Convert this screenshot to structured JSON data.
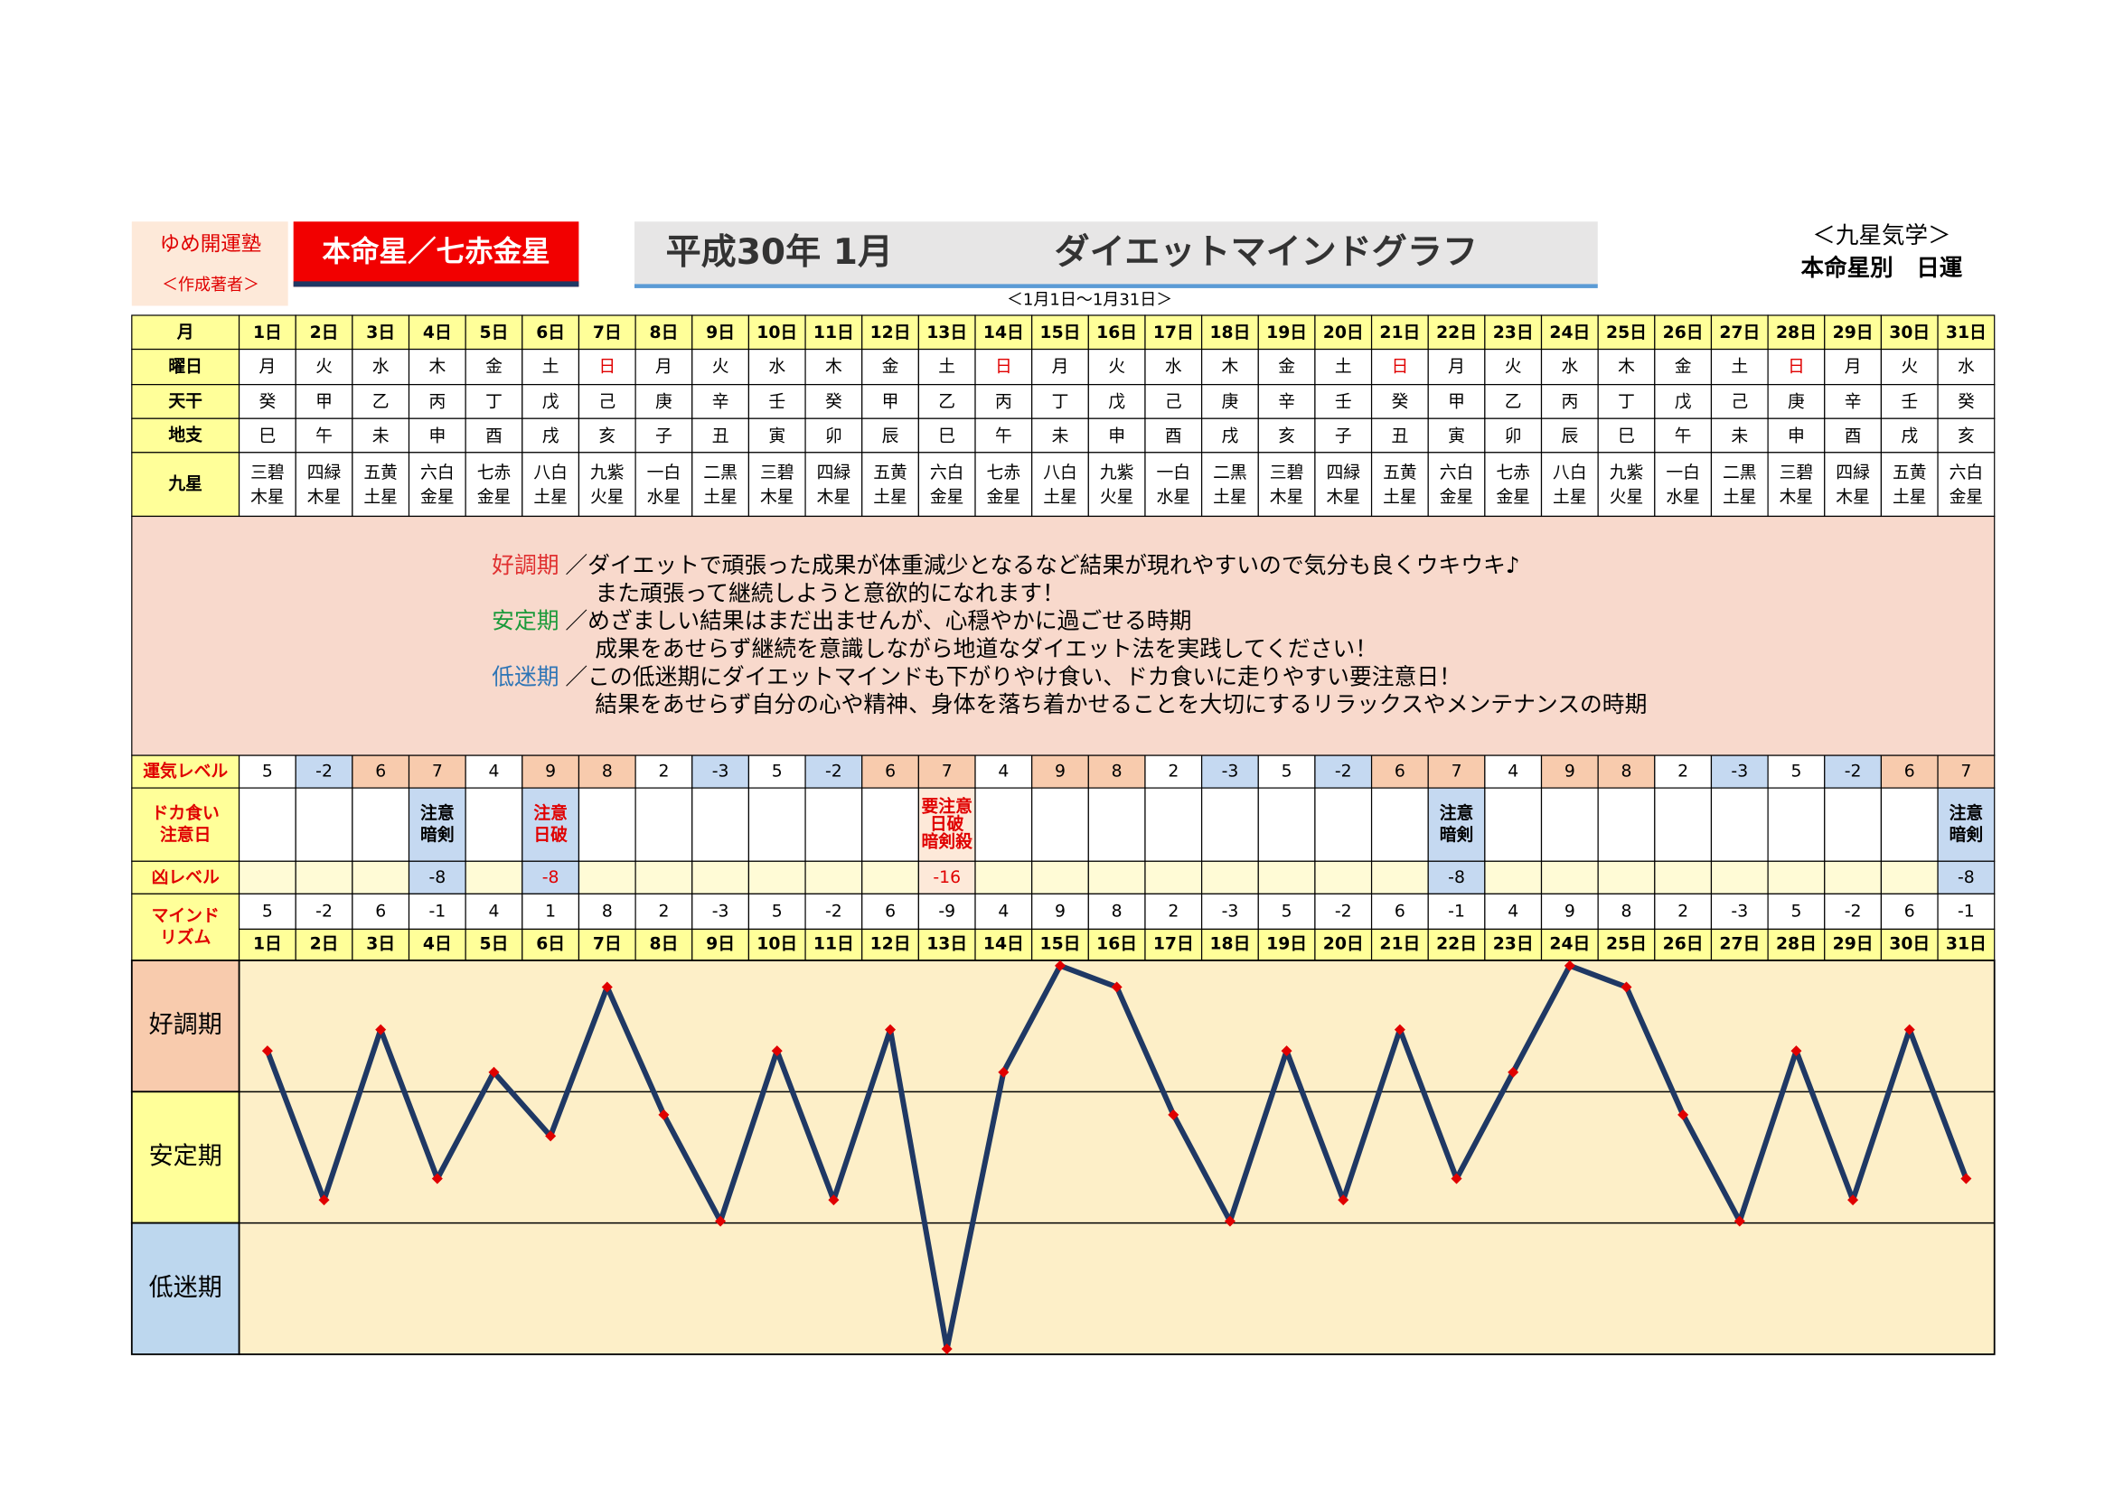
{
  "header": {
    "school": "ゆめ開運塾",
    "author": "＜作成著者＞",
    "star": "本命星／七赤金星",
    "title": "平成30年 1月",
    "subtitle": "ダイエットマインドグラフ",
    "period": "＜1月1日～1月31日＞",
    "category": "＜九星気学＞",
    "category2": "本命星別　日運"
  },
  "table": {
    "labels": {
      "month": "月",
      "weekday": "曜日",
      "tenkan": "天干",
      "chishi": "地支",
      "kyusei": "九星",
      "unki": "運気レベル",
      "doka": [
        "ドカ食い",
        "注意日"
      ],
      "kyo": "凶レベル",
      "mind": [
        "マインド",
        "リズム"
      ]
    },
    "days": [
      "1日",
      "2日",
      "3日",
      "4日",
      "5日",
      "6日",
      "7日",
      "8日",
      "9日",
      "10日",
      "11日",
      "12日",
      "13日",
      "14日",
      "15日",
      "16日",
      "17日",
      "18日",
      "19日",
      "20日",
      "21日",
      "22日",
      "23日",
      "24日",
      "25日",
      "26日",
      "27日",
      "28日",
      "29日",
      "30日",
      "31日"
    ],
    "weekdays": [
      "月",
      "火",
      "水",
      "木",
      "金",
      "土",
      "日",
      "月",
      "火",
      "水",
      "木",
      "金",
      "土",
      "日",
      "月",
      "火",
      "水",
      "木",
      "金",
      "土",
      "日",
      "月",
      "火",
      "水",
      "木",
      "金",
      "土",
      "日",
      "月",
      "火",
      "水"
    ],
    "weekday_colors": [
      "#000",
      "#000",
      "#000",
      "#000",
      "#000",
      "#000",
      "#e00000",
      "#000",
      "#000",
      "#000",
      "#000",
      "#000",
      "#000",
      "#e00000",
      "#000",
      "#000",
      "#000",
      "#000",
      "#000",
      "#000",
      "#e00000",
      "#000",
      "#000",
      "#000",
      "#000",
      "#000",
      "#000",
      "#e00000",
      "#000",
      "#000",
      "#000"
    ],
    "tenkan": [
      "癸",
      "甲",
      "乙",
      "丙",
      "丁",
      "戊",
      "己",
      "庚",
      "辛",
      "壬",
      "癸",
      "甲",
      "乙",
      "丙",
      "丁",
      "戊",
      "己",
      "庚",
      "辛",
      "壬",
      "癸",
      "甲",
      "乙",
      "丙",
      "丁",
      "戊",
      "己",
      "庚",
      "辛",
      "壬",
      "癸"
    ],
    "chishi": [
      "巳",
      "午",
      "未",
      "申",
      "酉",
      "戌",
      "亥",
      "子",
      "丑",
      "寅",
      "卯",
      "辰",
      "巳",
      "午",
      "未",
      "申",
      "酉",
      "戌",
      "亥",
      "子",
      "丑",
      "寅",
      "卯",
      "辰",
      "巳",
      "午",
      "未",
      "申",
      "酉",
      "戌",
      "亥"
    ],
    "kyusei": [
      [
        "三碧",
        "木星"
      ],
      [
        "四緑",
        "木星"
      ],
      [
        "五黄",
        "土星"
      ],
      [
        "六白",
        "金星"
      ],
      [
        "七赤",
        "金星"
      ],
      [
        "八白",
        "土星"
      ],
      [
        "九紫",
        "火星"
      ],
      [
        "一白",
        "水星"
      ],
      [
        "二黒",
        "土星"
      ],
      [
        "三碧",
        "木星"
      ],
      [
        "四緑",
        "木星"
      ],
      [
        "五黄",
        "土星"
      ],
      [
        "六白",
        "金星"
      ],
      [
        "七赤",
        "金星"
      ],
      [
        "八白",
        "土星"
      ],
      [
        "九紫",
        "火星"
      ],
      [
        "一白",
        "水星"
      ],
      [
        "二黒",
        "土星"
      ],
      [
        "三碧",
        "木星"
      ],
      [
        "四緑",
        "木星"
      ],
      [
        "五黄",
        "土星"
      ],
      [
        "六白",
        "金星"
      ],
      [
        "七赤",
        "金星"
      ],
      [
        "八白",
        "土星"
      ],
      [
        "九紫",
        "火星"
      ],
      [
        "一白",
        "水星"
      ],
      [
        "二黒",
        "土星"
      ],
      [
        "三碧",
        "木星"
      ],
      [
        "四緑",
        "木星"
      ],
      [
        "五黄",
        "土星"
      ],
      [
        "六白",
        "金星"
      ]
    ],
    "unki": [
      5,
      -2,
      6,
      7,
      4,
      9,
      8,
      2,
      -3,
      5,
      -2,
      6,
      7,
      4,
      9,
      8,
      2,
      -3,
      5,
      -2,
      6,
      7,
      4,
      9,
      8,
      2,
      -3,
      5,
      -2,
      6,
      7
    ],
    "unki_colors": [
      "#fff",
      "#c5d9f1",
      "#f8cbad",
      "#f8cbad",
      "#fff",
      "#f8cbad",
      "#f8cbad",
      "#fff",
      "#c5d9f1",
      "#fff",
      "#c5d9f1",
      "#f8cbad",
      "#f8cbad",
      "#fff",
      "#f8cbad",
      "#f8cbad",
      "#fff",
      "#c5d9f1",
      "#fff",
      "#c5d9f1",
      "#f8cbad",
      "#f8cbad",
      "#fff",
      "#f8cbad",
      "#f8cbad",
      "#fff",
      "#c5d9f1",
      "#fff",
      "#c5d9f1",
      "#f8cbad",
      "#f8cbad"
    ],
    "doka": [
      null,
      null,
      null,
      {
        "lines": [
          "注意",
          "暗剣"
        ],
        "color": "#000",
        "bg": "#c5d9f1"
      },
      null,
      {
        "lines": [
          "注意",
          "日破"
        ],
        "color": "#e00000",
        "bg": "#c5d9f1"
      },
      null,
      null,
      null,
      null,
      null,
      null,
      {
        "lines": [
          "要注意",
          "日破",
          "暗剣殺"
        ],
        "color": "#e00000",
        "bg": "#fde9d9"
      },
      null,
      null,
      null,
      null,
      null,
      null,
      null,
      null,
      {
        "lines": [
          "注意",
          "暗剣"
        ],
        "color": "#000",
        "bg": "#c5d9f1"
      },
      null,
      null,
      null,
      null,
      null,
      null,
      null,
      null,
      {
        "lines": [
          "注意",
          "暗剣"
        ],
        "color": "#000",
        "bg": "#c5d9f1"
      }
    ],
    "kyo": [
      null,
      null,
      null,
      {
        "value": -8,
        "color": "#000",
        "bg": "#c5d9f1"
      },
      null,
      {
        "value": -8,
        "color": "#e00000",
        "bg": "#c5d9f1"
      },
      null,
      null,
      null,
      null,
      null,
      null,
      {
        "value": -16,
        "color": "#e00000",
        "bg": "#fde9d9"
      },
      null,
      null,
      null,
      null,
      null,
      null,
      null,
      null,
      {
        "value": -8,
        "color": "#000",
        "bg": "#c5d9f1"
      },
      null,
      null,
      null,
      null,
      null,
      null,
      null,
      null,
      {
        "value": -8,
        "color": "#000",
        "bg": "#c5d9f1"
      }
    ],
    "mind": [
      5,
      -2,
      6,
      -1,
      4,
      1,
      8,
      2,
      -3,
      5,
      -2,
      6,
      -9,
      4,
      9,
      8,
      2,
      -3,
      5,
      -2,
      6,
      -1,
      4,
      9,
      8,
      2,
      -3,
      5,
      -2,
      6,
      -1
    ]
  },
  "legend": [
    {
      "label": "好調期",
      "color": "#e03030",
      "lines": [
        "／ダイエットで頑張った成果が体重減少となるなど結果が現れやすいので気分も良くウキウキ♪",
        "また頑張って継続しようと意欲的になれます！"
      ]
    },
    {
      "label": "安定期",
      "color": "#1a9a3a",
      "lines": [
        "／めざましい結果はまだ出ませんが、心穏やかに過ごせる時期",
        "成果をあせらず継続を意識しながら地道なダイエット法を実践してください！"
      ]
    },
    {
      "label": "低迷期",
      "color": "#2e75b6",
      "lines": [
        "／この低迷期にダイエットマインドも下がりやけ食い、ドカ食いに走りやすい要注意日！",
        "結果をあせらず自分の心や精神、身体を落ち着かせることを大切にするリラックスやメンテナンスの時期"
      ]
    }
  ],
  "graph": {
    "zones": [
      {
        "label": "好調期",
        "color": "#f8cbad"
      },
      {
        "label": "安定期",
        "color": "#ffff99"
      },
      {
        "label": "低迷期",
        "color": "#bdd7ee"
      }
    ],
    "ylim": [
      -9.25,
      9.25
    ],
    "line_color": "#1f3864",
    "marker_color": "#e00000",
    "background": "#fdefc8"
  }
}
